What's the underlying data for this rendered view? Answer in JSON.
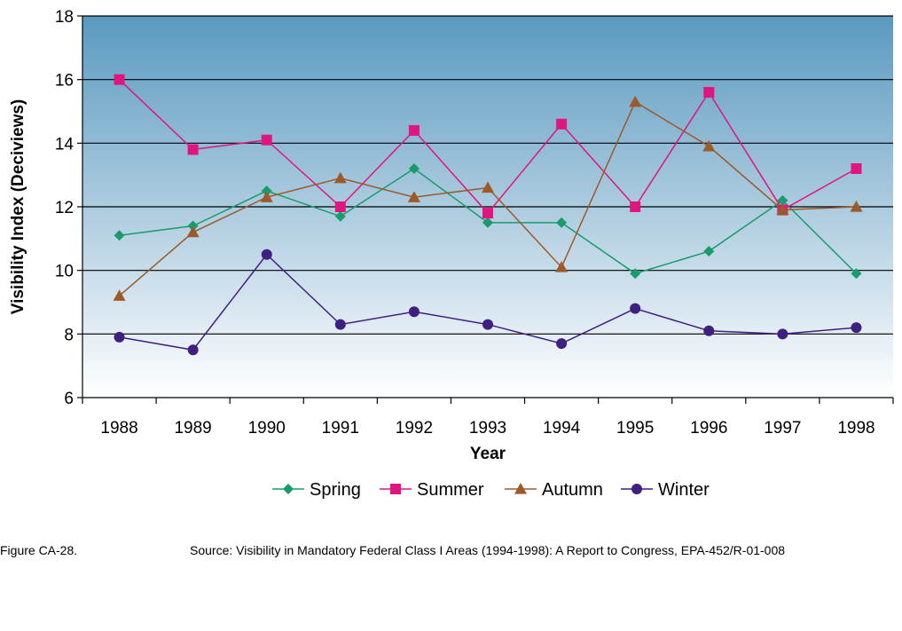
{
  "chart_data": {
    "type": "line",
    "xlabel": "Year",
    "ylabel": "Visibility Index (Deciviews)",
    "categories": [
      "1988",
      "1989",
      "1990",
      "1991",
      "1992",
      "1993",
      "1994",
      "1995",
      "1996",
      "1997",
      "1998"
    ],
    "ylim": [
      6,
      18
    ],
    "yticks": [
      6,
      8,
      10,
      12,
      14,
      16,
      18
    ],
    "grid": true,
    "legend_position": "bottom",
    "series": [
      {
        "name": "Spring",
        "color": "#1a9b6b",
        "marker": "diamond",
        "values": [
          11.1,
          11.4,
          12.5,
          11.7,
          13.2,
          11.5,
          11.5,
          9.9,
          10.6,
          12.2,
          9.9
        ]
      },
      {
        "name": "Summer",
        "color": "#e0157f",
        "marker": "square",
        "values": [
          16.0,
          13.8,
          14.1,
          12.0,
          14.4,
          11.8,
          14.6,
          12.0,
          15.6,
          11.9,
          13.2
        ]
      },
      {
        "name": "Autumn",
        "color": "#9c5a2a",
        "marker": "triangle",
        "values": [
          9.2,
          11.2,
          12.3,
          12.9,
          12.3,
          12.6,
          10.1,
          15.3,
          13.9,
          11.9,
          12.0
        ]
      },
      {
        "name": "Winter",
        "color": "#3f1f80",
        "marker": "circle",
        "values": [
          7.9,
          7.5,
          10.5,
          8.3,
          8.7,
          8.3,
          7.7,
          8.8,
          8.1,
          8.0,
          8.2
        ]
      }
    ]
  },
  "footer": {
    "figure_label": "Figure CA-28.",
    "source": "Source:  Visibility in Mandatory Federal Class I Areas (1994-1998): A Report to Congress, EPA-452/R-01-008"
  }
}
